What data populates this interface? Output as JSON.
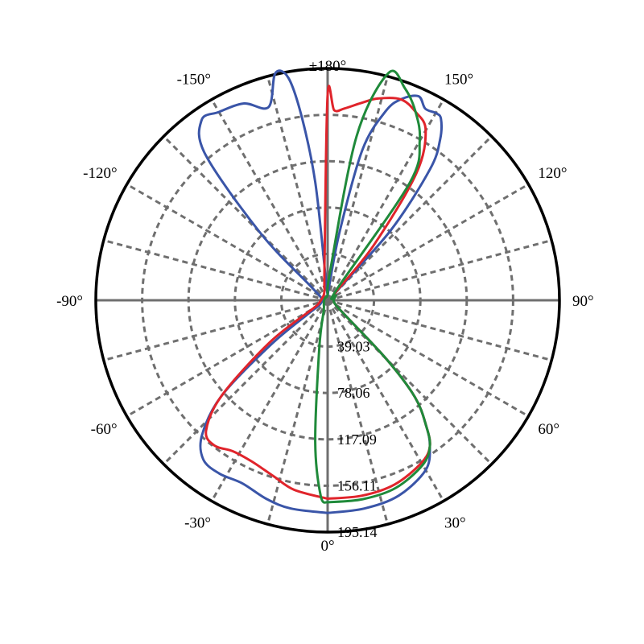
{
  "chart_data": {
    "type": "polar-line",
    "title": "",
    "angle_labels": [
      {
        "deg": 0,
        "text": "0°"
      },
      {
        "deg": 30,
        "text": "30°"
      },
      {
        "deg": 60,
        "text": "60°"
      },
      {
        "deg": 90,
        "text": "90°"
      },
      {
        "deg": 120,
        "text": "120°"
      },
      {
        "deg": 150,
        "text": "150°"
      },
      {
        "deg": 180,
        "text": "±180°"
      },
      {
        "deg": -150,
        "text": "-150°"
      },
      {
        "deg": -120,
        "text": "-120°"
      },
      {
        "deg": -90,
        "text": "-90°"
      },
      {
        "deg": -60,
        "text": "-60°"
      },
      {
        "deg": -30,
        "text": "-30°"
      }
    ],
    "radial_ticks": [
      39.03,
      78.06,
      117.09,
      156.11,
      195.14
    ],
    "radial_tick_labels": [
      "39.03",
      "78.06",
      "117.09",
      "156.11",
      "195.14"
    ],
    "rmax": 195.14,
    "spoke_step_deg": 15,
    "angle_zero_position": "bottom",
    "angle_direction": "counterclockwise",
    "grid": true,
    "legend": "none",
    "series": [
      {
        "color": "#3a55a8",
        "points": [
          [
            0,
            179
          ],
          [
            10,
            178
          ],
          [
            20,
            175
          ],
          [
            30,
            165
          ],
          [
            35,
            150
          ],
          [
            38,
            135
          ],
          [
            42,
            110
          ],
          [
            45,
            70
          ],
          [
            50,
            18
          ],
          [
            60,
            8
          ],
          [
            90,
            5
          ],
          [
            120,
            8
          ],
          [
            135,
            12
          ],
          [
            138,
            80
          ],
          [
            142,
            140
          ],
          [
            145,
            165
          ],
          [
            148,
            180
          ],
          [
            150,
            182
          ],
          [
            153,
            181
          ],
          [
            156,
            188
          ],
          [
            160,
            180
          ],
          [
            163,
            166
          ],
          [
            167,
            130
          ],
          [
            170,
            60
          ],
          [
            174,
            12
          ],
          [
            180,
            5
          ],
          [
            185,
            20
          ],
          [
            186,
            100
          ],
          [
            188,
            155
          ],
          [
            190,
            190
          ],
          [
            193,
            196
          ],
          [
            197,
            170
          ],
          [
            203,
            180
          ],
          [
            210,
            183
          ],
          [
            215,
            185
          ],
          [
            220,
            160
          ],
          [
            225,
            80
          ],
          [
            230,
            20
          ],
          [
            240,
            8
          ],
          [
            270,
            5
          ],
          [
            300,
            8
          ],
          [
            305,
            20
          ],
          [
            308,
            60
          ],
          [
            312,
            120
          ],
          [
            317,
            155
          ],
          [
            322,
            170
          ],
          [
            328,
            172
          ],
          [
            335,
            170
          ],
          [
            343,
            175
          ],
          [
            350,
            178
          ],
          [
            360,
            179
          ]
        ]
      },
      {
        "color": "#e0242b",
        "points": [
          [
            0,
            167
          ],
          [
            10,
            167
          ],
          [
            20,
            165
          ],
          [
            30,
            158
          ],
          [
            35,
            150
          ],
          [
            38,
            135
          ],
          [
            42,
            110
          ],
          [
            45,
            70
          ],
          [
            50,
            18
          ],
          [
            60,
            8
          ],
          [
            90,
            5
          ],
          [
            120,
            8
          ],
          [
            135,
            10
          ],
          [
            140,
            60
          ],
          [
            145,
            130
          ],
          [
            150,
            165
          ],
          [
            155,
            175
          ],
          [
            160,
            180
          ],
          [
            166,
            175
          ],
          [
            170,
            169
          ],
          [
            175,
            162
          ],
          [
            178,
            160
          ],
          [
            180,
            173
          ],
          [
            185,
            30
          ],
          [
            200,
            8
          ],
          [
            250,
            5
          ],
          [
            290,
            8
          ],
          [
            300,
            15
          ],
          [
            306,
            60
          ],
          [
            312,
            120
          ],
          [
            317,
            150
          ],
          [
            322,
            155
          ],
          [
            328,
            150
          ],
          [
            335,
            150
          ],
          [
            343,
            155
          ],
          [
            350,
            162
          ],
          [
            360,
            167
          ]
        ]
      },
      {
        "color": "#1f8a3a",
        "points": [
          [
            0,
            170
          ],
          [
            10,
            170
          ],
          [
            20,
            168
          ],
          [
            30,
            160
          ],
          [
            35,
            150
          ],
          [
            38,
            135
          ],
          [
            42,
            110
          ],
          [
            45,
            70
          ],
          [
            50,
            18
          ],
          [
            60,
            8
          ],
          [
            90,
            5
          ],
          [
            120,
            8
          ],
          [
            140,
            12
          ],
          [
            145,
            120
          ],
          [
            150,
            155
          ],
          [
            155,
            175
          ],
          [
            160,
            190
          ],
          [
            165,
            198
          ],
          [
            170,
            140
          ],
          [
            175,
            25
          ],
          [
            180,
            5
          ],
          [
            220,
            3
          ],
          [
            270,
            3
          ],
          [
            320,
            5
          ],
          [
            340,
            10
          ],
          [
            350,
            40
          ],
          [
            355,
            120
          ],
          [
            358,
            165
          ],
          [
            360,
            170
          ]
        ]
      }
    ]
  }
}
